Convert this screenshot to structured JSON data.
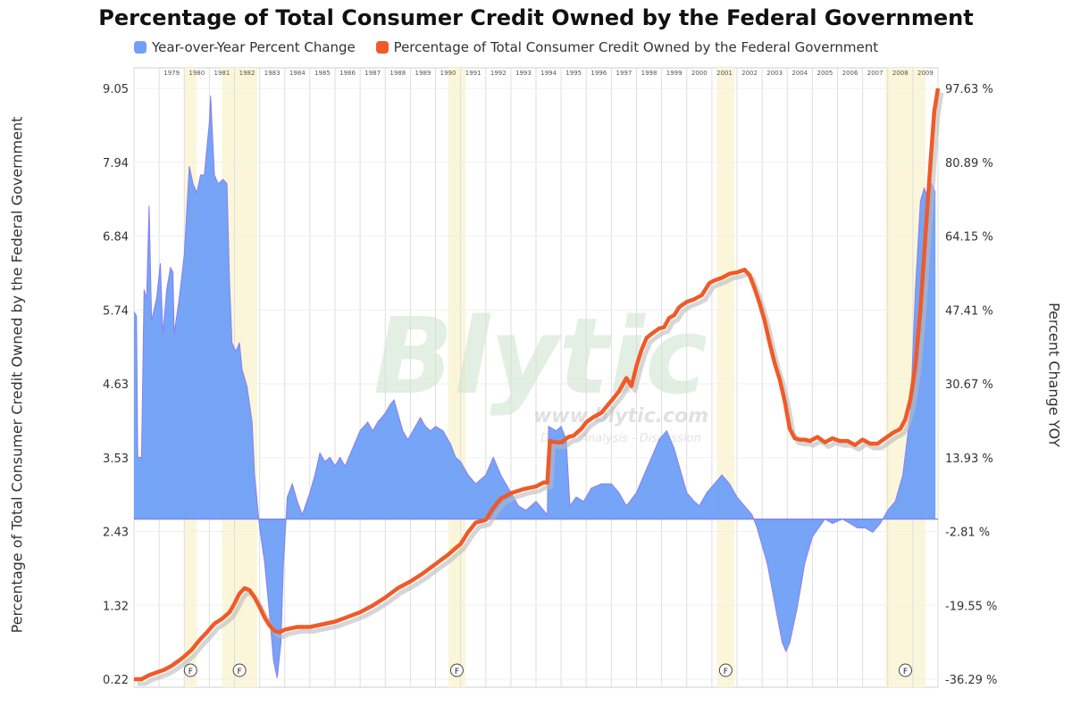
{
  "chart_data": {
    "type": "area",
    "title": "Percentage of Total Consumer Credit Owned by the Federal Government",
    "ylabel_left": "Percentage of Total Consumer Credit Owned by the Federal Government",
    "ylabel_right": "Percent Change YOY",
    "left_ticks": [
      "9.05",
      "7.94",
      "6.84",
      "5.74",
      "4.63",
      "3.53",
      "2.43",
      "1.32",
      "0.22"
    ],
    "right_ticks": [
      "97.63 %",
      "80.89 %",
      "64.15 %",
      "47.41 %",
      "30.67 %",
      "13.93 %",
      "-2.81 %",
      "-19.55 %",
      "-36.29 %"
    ],
    "ylim_left": [
      0.22,
      9.05
    ],
    "ylim_right": [
      -36.29,
      97.63
    ],
    "xlim": [
      1978,
      2010
    ],
    "year_labels": [
      "1979",
      "1980",
      "1981",
      "1982",
      "1983",
      "1984",
      "1985",
      "1986",
      "1987",
      "1988",
      "1989",
      "1990",
      "1991",
      "1992",
      "1993",
      "1994",
      "1995",
      "1996",
      "1997",
      "1998",
      "1999",
      "2000",
      "2001",
      "2002",
      "2003",
      "2004",
      "2005",
      "2006",
      "2007",
      "2008",
      "2009"
    ],
    "recessions": [
      [
        1980.0,
        1980.5
      ],
      [
        1981.5,
        1982.9
      ],
      [
        1990.5,
        1991.2
      ],
      [
        2001.2,
        2001.9
      ],
      [
        2007.9,
        2009.5
      ]
    ],
    "recession_marker": "F",
    "grid": true,
    "legend_position": "top",
    "watermark": {
      "main": "Blytic",
      "url": "www.blytic.com",
      "tagline": "Data - Analysis - Discussion"
    },
    "series": [
      {
        "name": "Year-over-Year Percent Change",
        "axis": "right",
        "color": "#6f9ff6",
        "line_color": "#8a7ff0",
        "points": [
          [
            1978.0,
            47.0
          ],
          [
            1978.1,
            46.0
          ],
          [
            1978.15,
            14.0
          ],
          [
            1978.3,
            14.0
          ],
          [
            1978.4,
            52.0
          ],
          [
            1978.5,
            50.0
          ],
          [
            1978.6,
            71.0
          ],
          [
            1978.7,
            45.0
          ],
          [
            1978.9,
            50.0
          ],
          [
            1979.05,
            58.0
          ],
          [
            1979.15,
            42.0
          ],
          [
            1979.3,
            52.0
          ],
          [
            1979.45,
            57.0
          ],
          [
            1979.55,
            56.0
          ],
          [
            1979.6,
            42.0
          ],
          [
            1979.8,
            50.0
          ],
          [
            1980.0,
            60.0
          ],
          [
            1980.2,
            80.0
          ],
          [
            1980.35,
            76.0
          ],
          [
            1980.5,
            74.0
          ],
          [
            1980.65,
            78.0
          ],
          [
            1980.8,
            78.0
          ],
          [
            1981.0,
            90.0
          ],
          [
            1981.05,
            96.0
          ],
          [
            1981.2,
            78.0
          ],
          [
            1981.35,
            76.0
          ],
          [
            1981.55,
            77.0
          ],
          [
            1981.7,
            76.0
          ],
          [
            1981.8,
            54.0
          ],
          [
            1981.9,
            40.0
          ],
          [
            1982.05,
            38.0
          ],
          [
            1982.2,
            40.0
          ],
          [
            1982.3,
            34.0
          ],
          [
            1982.5,
            30.0
          ],
          [
            1982.7,
            22.0
          ],
          [
            1982.8,
            10.0
          ],
          [
            1983.0,
            -2.0
          ],
          [
            1983.2,
            -10.0
          ],
          [
            1983.4,
            -22.0
          ],
          [
            1983.55,
            -32.0
          ],
          [
            1983.7,
            -36.0
          ],
          [
            1983.85,
            -28.0
          ],
          [
            1983.95,
            -10.0
          ],
          [
            1984.1,
            5.0
          ],
          [
            1984.3,
            8.0
          ],
          [
            1984.5,
            4.0
          ],
          [
            1984.7,
            1.0
          ],
          [
            1985.0,
            6.0
          ],
          [
            1985.2,
            10.0
          ],
          [
            1985.4,
            15.0
          ],
          [
            1985.6,
            13.0
          ],
          [
            1985.8,
            14.0
          ],
          [
            1986.0,
            12.0
          ],
          [
            1986.2,
            14.0
          ],
          [
            1986.4,
            12.0
          ],
          [
            1986.7,
            16.0
          ],
          [
            1987.0,
            20.0
          ],
          [
            1987.3,
            22.0
          ],
          [
            1987.5,
            20.0
          ],
          [
            1987.7,
            22.0
          ],
          [
            1988.0,
            24.0
          ],
          [
            1988.2,
            26.0
          ],
          [
            1988.35,
            27.0
          ],
          [
            1988.5,
            24.0
          ],
          [
            1988.7,
            20.0
          ],
          [
            1988.9,
            18.0
          ],
          [
            1989.1,
            20.0
          ],
          [
            1989.4,
            23.0
          ],
          [
            1989.6,
            21.0
          ],
          [
            1989.8,
            20.0
          ],
          [
            1990.0,
            21.0
          ],
          [
            1990.3,
            20.0
          ],
          [
            1990.6,
            17.0
          ],
          [
            1990.8,
            14.0
          ],
          [
            1991.0,
            13.0
          ],
          [
            1991.3,
            10.0
          ],
          [
            1991.6,
            8.0
          ],
          [
            1992.0,
            10.0
          ],
          [
            1992.3,
            14.0
          ],
          [
            1992.6,
            10.0
          ],
          [
            1993.0,
            6.0
          ],
          [
            1993.3,
            3.0
          ],
          [
            1993.6,
            2.0
          ],
          [
            1994.0,
            4.0
          ],
          [
            1994.3,
            2.0
          ],
          [
            1994.45,
            1.0
          ],
          [
            1994.5,
            21.0
          ],
          [
            1994.8,
            20.0
          ],
          [
            1995.0,
            21.0
          ],
          [
            1995.2,
            18.0
          ],
          [
            1995.35,
            3.0
          ],
          [
            1995.6,
            5.0
          ],
          [
            1995.9,
            4.0
          ],
          [
            1996.2,
            7.0
          ],
          [
            1996.6,
            8.0
          ],
          [
            1997.0,
            8.0
          ],
          [
            1997.3,
            6.0
          ],
          [
            1997.6,
            3.0
          ],
          [
            1998.0,
            6.0
          ],
          [
            1998.3,
            10.0
          ],
          [
            1998.6,
            14.0
          ],
          [
            1998.9,
            18.0
          ],
          [
            1999.2,
            20.0
          ],
          [
            1999.5,
            16.0
          ],
          [
            1999.8,
            10.0
          ],
          [
            2000.0,
            6.0
          ],
          [
            2000.3,
            4.0
          ],
          [
            2000.5,
            3.0
          ],
          [
            2000.8,
            6.0
          ],
          [
            2001.1,
            8.0
          ],
          [
            2001.4,
            10.0
          ],
          [
            2001.7,
            8.0
          ],
          [
            2002.0,
            5.0
          ],
          [
            2002.3,
            3.0
          ],
          [
            2002.6,
            1.0
          ],
          [
            2002.8,
            -2.0
          ],
          [
            2003.0,
            -6.0
          ],
          [
            2003.2,
            -10.0
          ],
          [
            2003.4,
            -16.0
          ],
          [
            2003.6,
            -22.0
          ],
          [
            2003.8,
            -28.0
          ],
          [
            2003.95,
            -30.0
          ],
          [
            2004.1,
            -28.0
          ],
          [
            2004.4,
            -20.0
          ],
          [
            2004.7,
            -10.0
          ],
          [
            2005.0,
            -4.0
          ],
          [
            2005.5,
            0.0
          ],
          [
            2005.8,
            -1.0
          ],
          [
            2006.2,
            0.0
          ],
          [
            2006.5,
            -1.0
          ],
          [
            2006.8,
            -2.0
          ],
          [
            2007.1,
            -2.0
          ],
          [
            2007.4,
            -3.0
          ],
          [
            2007.7,
            -1.0
          ],
          [
            2008.0,
            2.0
          ],
          [
            2008.3,
            4.0
          ],
          [
            2008.6,
            10.0
          ],
          [
            2008.9,
            24.0
          ],
          [
            2009.1,
            52.0
          ],
          [
            2009.3,
            72.0
          ],
          [
            2009.45,
            75.0
          ],
          [
            2009.6,
            73.0
          ],
          [
            2009.75,
            76.0
          ],
          [
            2009.9,
            74.0
          ]
        ]
      },
      {
        "name": "Percentage of Total Consumer Credit Owned by the Federal Government",
        "axis": "left",
        "color": "#f05a28",
        "points": [
          [
            1978.0,
            0.22
          ],
          [
            1978.3,
            0.22
          ],
          [
            1978.6,
            0.28
          ],
          [
            1978.9,
            0.32
          ],
          [
            1979.2,
            0.36
          ],
          [
            1979.5,
            0.42
          ],
          [
            1979.8,
            0.5
          ],
          [
            1980.0,
            0.56
          ],
          [
            1980.3,
            0.66
          ],
          [
            1980.6,
            0.8
          ],
          [
            1980.9,
            0.92
          ],
          [
            1981.2,
            1.05
          ],
          [
            1981.5,
            1.12
          ],
          [
            1981.8,
            1.22
          ],
          [
            1982.0,
            1.35
          ],
          [
            1982.2,
            1.5
          ],
          [
            1982.4,
            1.58
          ],
          [
            1982.6,
            1.55
          ],
          [
            1982.8,
            1.44
          ],
          [
            1983.0,
            1.3
          ],
          [
            1983.2,
            1.14
          ],
          [
            1983.4,
            1.02
          ],
          [
            1983.6,
            0.94
          ],
          [
            1983.8,
            0.92
          ],
          [
            1984.0,
            0.96
          ],
          [
            1984.5,
            1.0
          ],
          [
            1985.0,
            1.0
          ],
          [
            1985.5,
            1.04
          ],
          [
            1986.0,
            1.08
          ],
          [
            1986.5,
            1.15
          ],
          [
            1987.0,
            1.22
          ],
          [
            1987.5,
            1.32
          ],
          [
            1988.0,
            1.44
          ],
          [
            1988.5,
            1.58
          ],
          [
            1989.0,
            1.68
          ],
          [
            1989.5,
            1.8
          ],
          [
            1990.0,
            1.94
          ],
          [
            1990.5,
            2.08
          ],
          [
            1990.8,
            2.18
          ],
          [
            1991.0,
            2.24
          ],
          [
            1991.3,
            2.42
          ],
          [
            1991.6,
            2.56
          ],
          [
            1992.0,
            2.6
          ],
          [
            1992.3,
            2.78
          ],
          [
            1992.6,
            2.92
          ],
          [
            1993.0,
            3.0
          ],
          [
            1993.5,
            3.06
          ],
          [
            1994.0,
            3.1
          ],
          [
            1994.3,
            3.16
          ],
          [
            1994.45,
            3.16
          ],
          [
            1994.55,
            3.78
          ],
          [
            1994.8,
            3.76
          ],
          [
            1995.0,
            3.76
          ],
          [
            1995.3,
            3.84
          ],
          [
            1995.5,
            3.86
          ],
          [
            1995.8,
            3.96
          ],
          [
            1996.0,
            4.06
          ],
          [
            1996.3,
            4.14
          ],
          [
            1996.6,
            4.2
          ],
          [
            1997.0,
            4.38
          ],
          [
            1997.3,
            4.52
          ],
          [
            1997.6,
            4.72
          ],
          [
            1997.8,
            4.6
          ],
          [
            1998.0,
            4.9
          ],
          [
            1998.2,
            5.14
          ],
          [
            1998.4,
            5.32
          ],
          [
            1998.6,
            5.38
          ],
          [
            1998.9,
            5.46
          ],
          [
            1999.1,
            5.48
          ],
          [
            1999.3,
            5.62
          ],
          [
            1999.5,
            5.66
          ],
          [
            1999.7,
            5.78
          ],
          [
            2000.0,
            5.86
          ],
          [
            2000.3,
            5.9
          ],
          [
            2000.6,
            5.96
          ],
          [
            2000.9,
            6.14
          ],
          [
            2001.1,
            6.18
          ],
          [
            2001.4,
            6.22
          ],
          [
            2001.7,
            6.28
          ],
          [
            2002.0,
            6.3
          ],
          [
            2002.3,
            6.34
          ],
          [
            2002.5,
            6.26
          ],
          [
            2002.7,
            6.06
          ],
          [
            2002.9,
            5.84
          ],
          [
            2003.1,
            5.58
          ],
          [
            2003.3,
            5.24
          ],
          [
            2003.5,
            4.94
          ],
          [
            2003.7,
            4.7
          ],
          [
            2003.9,
            4.38
          ],
          [
            2004.1,
            3.96
          ],
          [
            2004.3,
            3.82
          ],
          [
            2004.5,
            3.8
          ],
          [
            2004.7,
            3.8
          ],
          [
            2004.9,
            3.78
          ],
          [
            2005.2,
            3.84
          ],
          [
            2005.5,
            3.76
          ],
          [
            2005.8,
            3.82
          ],
          [
            2006.1,
            3.78
          ],
          [
            2006.4,
            3.78
          ],
          [
            2006.7,
            3.72
          ],
          [
            2007.0,
            3.8
          ],
          [
            2007.3,
            3.74
          ],
          [
            2007.6,
            3.74
          ],
          [
            2007.9,
            3.82
          ],
          [
            2008.2,
            3.9
          ],
          [
            2008.5,
            3.96
          ],
          [
            2008.7,
            4.1
          ],
          [
            2008.9,
            4.4
          ],
          [
            2009.1,
            4.9
          ],
          [
            2009.3,
            5.74
          ],
          [
            2009.5,
            6.84
          ],
          [
            2009.7,
            7.94
          ],
          [
            2009.85,
            8.7
          ],
          [
            2010.0,
            9.05
          ]
        ]
      }
    ]
  }
}
